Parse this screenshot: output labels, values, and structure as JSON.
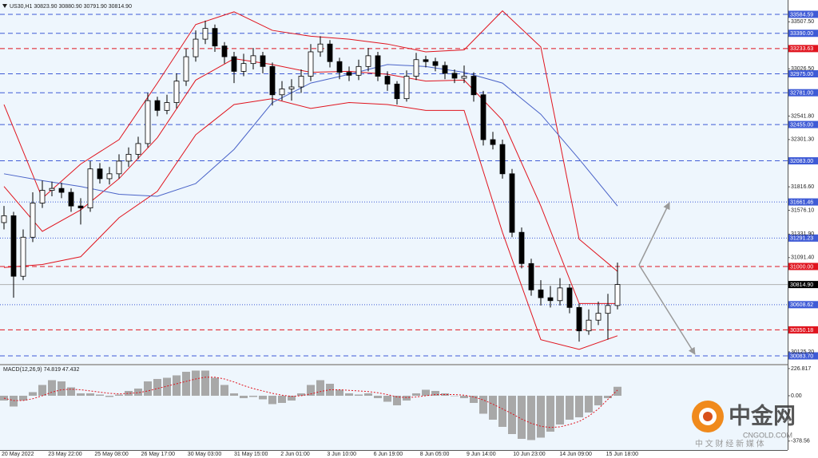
{
  "header": "US30,H1 30823.90 30880.90 30791.90 30814.90",
  "watermark": {
    "name": "中金网",
    "domain": "CNGOLD.COM",
    "slogan": "中 文 财 经 新 媒 体"
  },
  "chart_data": [
    {
      "type": "candlestick",
      "ylim": [
        30002,
        33666
      ],
      "up_color": "#ffffff",
      "down_color": "#000000",
      "open": [
        31450,
        31520,
        30900,
        31300,
        31650,
        31780,
        31800,
        31760,
        31620,
        31600,
        32000,
        31900,
        31950,
        32080,
        32150,
        32260,
        32700,
        32600,
        32680,
        32900,
        33150,
        33330,
        33440,
        33260,
        33150,
        33000,
        33080,
        33160,
        33050,
        32760,
        32820,
        32840,
        32950,
        33200,
        33280,
        33100,
        32990,
        32960,
        33050,
        33160,
        32950,
        32870,
        32720,
        32950,
        33120,
        33100,
        33060,
        32980,
        32930,
        32950,
        32760,
        32300,
        32250,
        31950,
        31350,
        31030,
        30760,
        30680,
        30650,
        30780,
        30580,
        30340,
        30450,
        30520,
        30600
      ],
      "high": [
        31620,
        31560,
        31380,
        31760,
        31880,
        31870,
        31860,
        31800,
        31700,
        32080,
        32060,
        32020,
        32150,
        32220,
        32330,
        32780,
        32740,
        32760,
        32980,
        33230,
        33420,
        33520,
        33480,
        33300,
        33200,
        33180,
        33240,
        33200,
        33090,
        32900,
        32920,
        33020,
        33280,
        33360,
        33320,
        33140,
        33050,
        33120,
        33240,
        33200,
        33000,
        32900,
        33010,
        33190,
        33160,
        33140,
        33100,
        33020,
        33060,
        32990,
        32800,
        32380,
        32300,
        32000,
        31400,
        31080,
        30860,
        30800,
        30880,
        30820,
        30620,
        30560,
        30640,
        30720,
        31040
      ],
      "low": [
        31380,
        30680,
        30860,
        31250,
        31600,
        31720,
        31700,
        31560,
        31430,
        31560,
        31850,
        31840,
        31900,
        32020,
        32100,
        32220,
        32540,
        32560,
        32620,
        32850,
        33100,
        33280,
        33200,
        33080,
        32880,
        32950,
        33020,
        32980,
        32650,
        32700,
        32700,
        32780,
        32900,
        33150,
        33040,
        32920,
        32900,
        32910,
        33000,
        32900,
        32800,
        32660,
        32690,
        32910,
        33040,
        33000,
        32920,
        32880,
        32880,
        32690,
        32240,
        32200,
        31900,
        31300,
        30980,
        30700,
        30600,
        30580,
        30600,
        30520,
        30230,
        30300,
        30400,
        30250,
        30560
      ],
      "close": [
        31520,
        30900,
        31300,
        31650,
        31780,
        31800,
        31760,
        31620,
        31600,
        32000,
        31900,
        31950,
        32080,
        32150,
        32260,
        32700,
        32600,
        32680,
        32900,
        33150,
        33330,
        33440,
        33260,
        33150,
        33000,
        33080,
        33160,
        33050,
        32760,
        32820,
        32840,
        32950,
        33200,
        33280,
        33100,
        32990,
        32960,
        33050,
        33160,
        32950,
        32870,
        32720,
        32950,
        33120,
        33100,
        33060,
        32980,
        32930,
        32950,
        32760,
        32300,
        32250,
        31950,
        31350,
        31030,
        30760,
        30680,
        30650,
        30780,
        30580,
        30340,
        30450,
        30520,
        30600,
        30815
      ],
      "overlay_x": [
        0,
        4,
        8,
        12,
        16,
        20,
        24,
        28,
        32,
        36,
        40,
        44,
        48,
        52,
        56,
        60,
        64
      ],
      "overlays": [
        {
          "color": "#e0141e",
          "values": [
            32660,
            31700,
            32050,
            32300,
            32880,
            33480,
            33610,
            33420,
            33360,
            33330,
            33280,
            33200,
            33220,
            33620,
            33250,
            31280,
            30950
          ]
        },
        {
          "color": "#e0141e",
          "values": [
            31820,
            31360,
            31580,
            31900,
            32320,
            32910,
            33130,
            33070,
            32990,
            33000,
            32970,
            32900,
            32910,
            32500,
            31620,
            30620,
            30620
          ]
        },
        {
          "color": "#e0141e",
          "values": [
            30990,
            31020,
            31100,
            31500,
            31770,
            32350,
            32660,
            32720,
            32620,
            32680,
            32660,
            32600,
            32600,
            31350,
            30250,
            30150,
            30290
          ]
        },
        {
          "color": "#4a63c8",
          "values": [
            31950,
            31880,
            31820,
            31740,
            31720,
            31850,
            32200,
            32680,
            32880,
            32970,
            33070,
            33050,
            32990,
            32880,
            32560,
            32100,
            31620
          ]
        }
      ],
      "levels": [
        {
          "value": 33584.59,
          "color": "#3f5bd6",
          "style": "dashed"
        },
        {
          "value": 33390,
          "label": "33390.00",
          "color": "#3f5bd6",
          "style": "dashed"
        },
        {
          "value": 33233.63,
          "color": "#e0141e",
          "style": "dashed"
        },
        {
          "value": 32975,
          "label": "32975.00",
          "color": "#3f5bd6",
          "style": "dashed"
        },
        {
          "value": 32781,
          "label": "32781.00",
          "color": "#3f5bd6",
          "style": "dashed"
        },
        {
          "value": 32455,
          "label": "32455.00",
          "color": "#3f5bd6",
          "style": "dashed"
        },
        {
          "value": 32083,
          "label": "32083.00",
          "color": "#3f5bd6",
          "style": "dashed"
        },
        {
          "value": 31661.46,
          "color": "#3f5bd6",
          "style": "dotted"
        },
        {
          "value": 31291.23,
          "color": "#3f5bd6",
          "style": "dotted"
        },
        {
          "value": 31000,
          "label": "31000.00",
          "color": "#e0141e",
          "style": "dashed"
        },
        {
          "value": 30814.9,
          "label": "30814.90",
          "color": "#000000",
          "style": "solid"
        },
        {
          "value": 30608.62,
          "color": "#3f5bd6",
          "style": "dotted"
        },
        {
          "value": 30350.18,
          "color": "#e0141e",
          "style": "dashed"
        },
        {
          "value": 30083.7,
          "label": "30083.70",
          "color": "#3f5bd6",
          "style": "dashed"
        }
      ],
      "yticks": [
        {
          "value": 33507.5,
          "label": "33507.50"
        },
        {
          "value": 33026.5,
          "label": "33026.50"
        },
        {
          "value": 32541.8,
          "label": "32541.80"
        },
        {
          "value": 32301.3,
          "label": "32301.30"
        },
        {
          "value": 31816.6,
          "label": "31816.60"
        },
        {
          "value": 31576.1,
          "label": "31576.10"
        },
        {
          "value": 31331.9,
          "label": "31331.90"
        },
        {
          "value": 31091.4,
          "label": "31091.40"
        },
        {
          "value": 30125.2,
          "label": "30125.20"
        }
      ],
      "time_labels": [
        "20 May 2022",
        "23 May 22:00",
        "25 May 08:00",
        "26 May 17:00",
        "30 May 03:00",
        "31 May 15:00",
        "2 Jun 01:00",
        "3 Jun 10:00",
        "6 Jun 19:00",
        "8 Jun 05:00",
        "9 Jun 14:00",
        "10 Jun 23:00",
        "14 Jun 09:00",
        "15 Jun 18:00"
      ]
    },
    {
      "type": "macd",
      "title": "MACD(12,26,9) 74.819 47.432",
      "ylim": [
        -460,
        253
      ],
      "yticks": [
        226.817,
        {
          "value": 0,
          "label": "0.00"
        },
        -378.56
      ],
      "color": "#a8a8a8",
      "signal_color": "#e0141e",
      "values": [
        -40,
        -90,
        -40,
        30,
        90,
        130,
        120,
        70,
        20,
        20,
        10,
        -10,
        10,
        40,
        60,
        120,
        140,
        150,
        170,
        200,
        210,
        210,
        150,
        90,
        20,
        -20,
        -10,
        -30,
        -70,
        -60,
        -40,
        20,
        90,
        130,
        100,
        50,
        20,
        10,
        20,
        -20,
        -50,
        -80,
        -40,
        20,
        50,
        40,
        20,
        0,
        -20,
        -60,
        -150,
        -200,
        -260,
        -320,
        -360,
        -370,
        -350,
        -300,
        -240,
        -200,
        -180,
        -140,
        -80,
        -20,
        74.819
      ],
      "signal": [
        -20,
        -40,
        -40,
        -25,
        0,
        30,
        50,
        55,
        50,
        40,
        30,
        20,
        15,
        20,
        25,
        40,
        60,
        80,
        100,
        120,
        140,
        155,
        155,
        140,
        115,
        85,
        60,
        40,
        20,
        5,
        -5,
        0,
        15,
        35,
        50,
        50,
        45,
        40,
        35,
        25,
        10,
        -10,
        -15,
        -10,
        0,
        10,
        10,
        10,
        5,
        -10,
        -35,
        -70,
        -110,
        -150,
        -195,
        -230,
        -255,
        -265,
        -260,
        -240,
        -215,
        -170,
        -110,
        -30,
        47.432
      ]
    }
  ]
}
